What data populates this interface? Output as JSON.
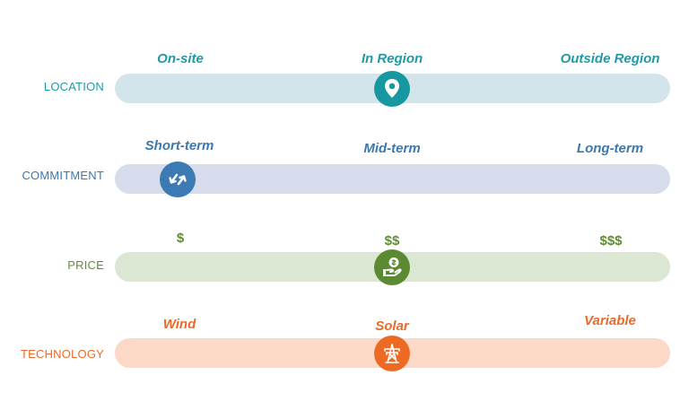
{
  "rows": [
    {
      "label": "LOCATION",
      "options": [
        "On-site",
        "In Region",
        "Outside Region"
      ],
      "selected": "In Region",
      "icon": "location-pin-icon",
      "label_color": "#1f9aa6",
      "bar_color": "#d3e5ea",
      "marker_color": "#17979f",
      "option_color": "#1f9aa6"
    },
    {
      "label": "COMMITMENT",
      "options": [
        "Short-term",
        "Mid-term",
        "Long-term"
      ],
      "selected": "Short-term",
      "icon": "swap-arrows-icon",
      "label_color": "#3c78ad",
      "bar_color": "#d7dcec",
      "marker_color": "#3b7ab3",
      "option_color": "#3c78ad"
    },
    {
      "label": "PRICE",
      "options": [
        "$",
        "$$",
        "$$$"
      ],
      "selected": "$$",
      "icon": "money-hand-icon",
      "label_color": "#5f8f2f",
      "bar_color": "#dbe6d3",
      "marker_color": "#5c8a32",
      "option_color": "#5f8f2f"
    },
    {
      "label": "TECHNOLOGY",
      "options": [
        "Wind",
        "Solar",
        "Variable"
      ],
      "selected": "Solar",
      "icon": "power-tower-icon",
      "label_color": "#ea6a2a",
      "bar_color": "#fcd9c6",
      "marker_color": "#ec6a23",
      "option_color": "#ea6a2a"
    }
  ]
}
